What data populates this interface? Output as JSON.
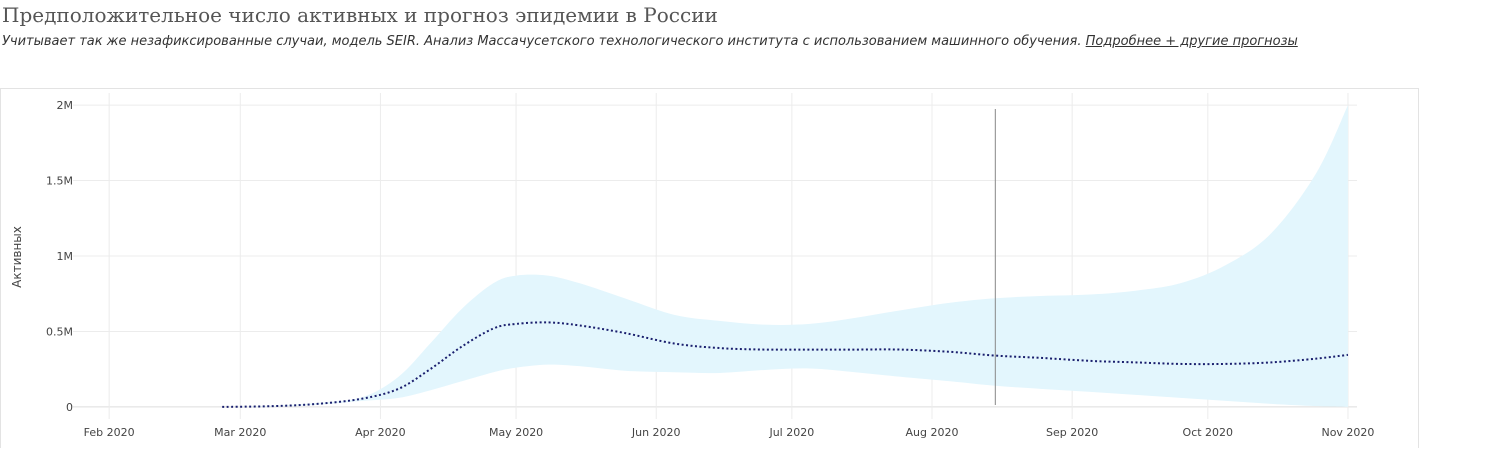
{
  "header": {
    "title": "Предположительное число активных и прогноз эпидемии в России",
    "subtitle": "Учитывает так же незафиксированные случаи, модель SEIR. Анализ Массачусетского технологического института с использованием машинного обучения.",
    "link_label": "Подробнее + другие прогнозы"
  },
  "chart_data": {
    "type": "area",
    "ylabel": "Активных",
    "xlabel": "",
    "x_ticks": [
      {
        "date": "2020-02-01",
        "label": "Feb 2020"
      },
      {
        "date": "2020-03-01",
        "label": "Mar 2020"
      },
      {
        "date": "2020-04-01",
        "label": "Apr 2020"
      },
      {
        "date": "2020-05-01",
        "label": "May 2020"
      },
      {
        "date": "2020-06-01",
        "label": "Jun 2020"
      },
      {
        "date": "2020-07-01",
        "label": "Jul 2020"
      },
      {
        "date": "2020-08-01",
        "label": "Aug 2020"
      },
      {
        "date": "2020-09-01",
        "label": "Sep 2020"
      },
      {
        "date": "2020-10-01",
        "label": "Oct 2020"
      },
      {
        "date": "2020-11-01",
        "label": "Nov 2020"
      }
    ],
    "y_ticks": [
      {
        "value": 0,
        "label": "0"
      },
      {
        "value": 500000,
        "label": "0.5M"
      },
      {
        "value": 1000000,
        "label": "1M"
      },
      {
        "value": 1500000,
        "label": "1.5M"
      },
      {
        "value": 2000000,
        "label": "2M"
      }
    ],
    "xlim": [
      "2020-01-24",
      "2020-11-03"
    ],
    "ylim": [
      -80000,
      2080000
    ],
    "vline_date": "2020-08-15",
    "grid": true,
    "colors": {
      "line": "#1a1f6e",
      "band": "#e3f6fd",
      "grid": "#ececec",
      "vline": "#888888"
    },
    "series": [
      {
        "type": "line-dotted",
        "x": [
          "2020-02-26",
          "2020-03-08",
          "2020-03-18",
          "2020-03-28",
          "2020-04-05",
          "2020-04-12",
          "2020-04-19",
          "2020-04-26",
          "2020-05-01",
          "2020-05-08",
          "2020-05-15",
          "2020-05-25",
          "2020-06-05",
          "2020-06-15",
          "2020-06-25",
          "2020-07-05",
          "2020-07-15",
          "2020-07-25",
          "2020-08-05",
          "2020-08-15",
          "2020-08-25",
          "2020-09-05",
          "2020-09-15",
          "2020-09-25",
          "2020-10-05",
          "2020-10-15",
          "2020-10-25",
          "2020-11-01"
        ],
        "y": [
          0,
          5000,
          20000,
          55000,
          120000,
          250000,
          400000,
          520000,
          550000,
          560000,
          540000,
          490000,
          420000,
          390000,
          380000,
          380000,
          380000,
          380000,
          365000,
          340000,
          325000,
          305000,
          295000,
          285000,
          285000,
          295000,
          320000,
          345000
        ]
      },
      {
        "type": "band",
        "x": [
          "2020-02-26",
          "2020-03-08",
          "2020-03-18",
          "2020-03-28",
          "2020-04-05",
          "2020-04-12",
          "2020-04-19",
          "2020-04-26",
          "2020-05-01",
          "2020-05-08",
          "2020-05-15",
          "2020-05-25",
          "2020-06-05",
          "2020-06-15",
          "2020-06-25",
          "2020-07-05",
          "2020-07-15",
          "2020-07-25",
          "2020-08-05",
          "2020-08-15",
          "2020-08-25",
          "2020-09-05",
          "2020-09-15",
          "2020-09-25",
          "2020-10-05",
          "2020-10-15",
          "2020-10-25",
          "2020-11-01"
        ],
        "upper": [
          0,
          8000,
          25000,
          65000,
          200000,
          420000,
          650000,
          820000,
          870000,
          870000,
          820000,
          720000,
          610000,
          570000,
          545000,
          550000,
          590000,
          640000,
          690000,
          720000,
          735000,
          745000,
          770000,
          820000,
          940000,
          1150000,
          1550000,
          2000000
        ],
        "lower": [
          0,
          3000,
          15000,
          40000,
          60000,
          110000,
          170000,
          230000,
          260000,
          280000,
          270000,
          240000,
          230000,
          225000,
          245000,
          255000,
          230000,
          200000,
          170000,
          140000,
          120000,
          100000,
          80000,
          60000,
          40000,
          20000,
          5000,
          0
        ]
      }
    ]
  }
}
